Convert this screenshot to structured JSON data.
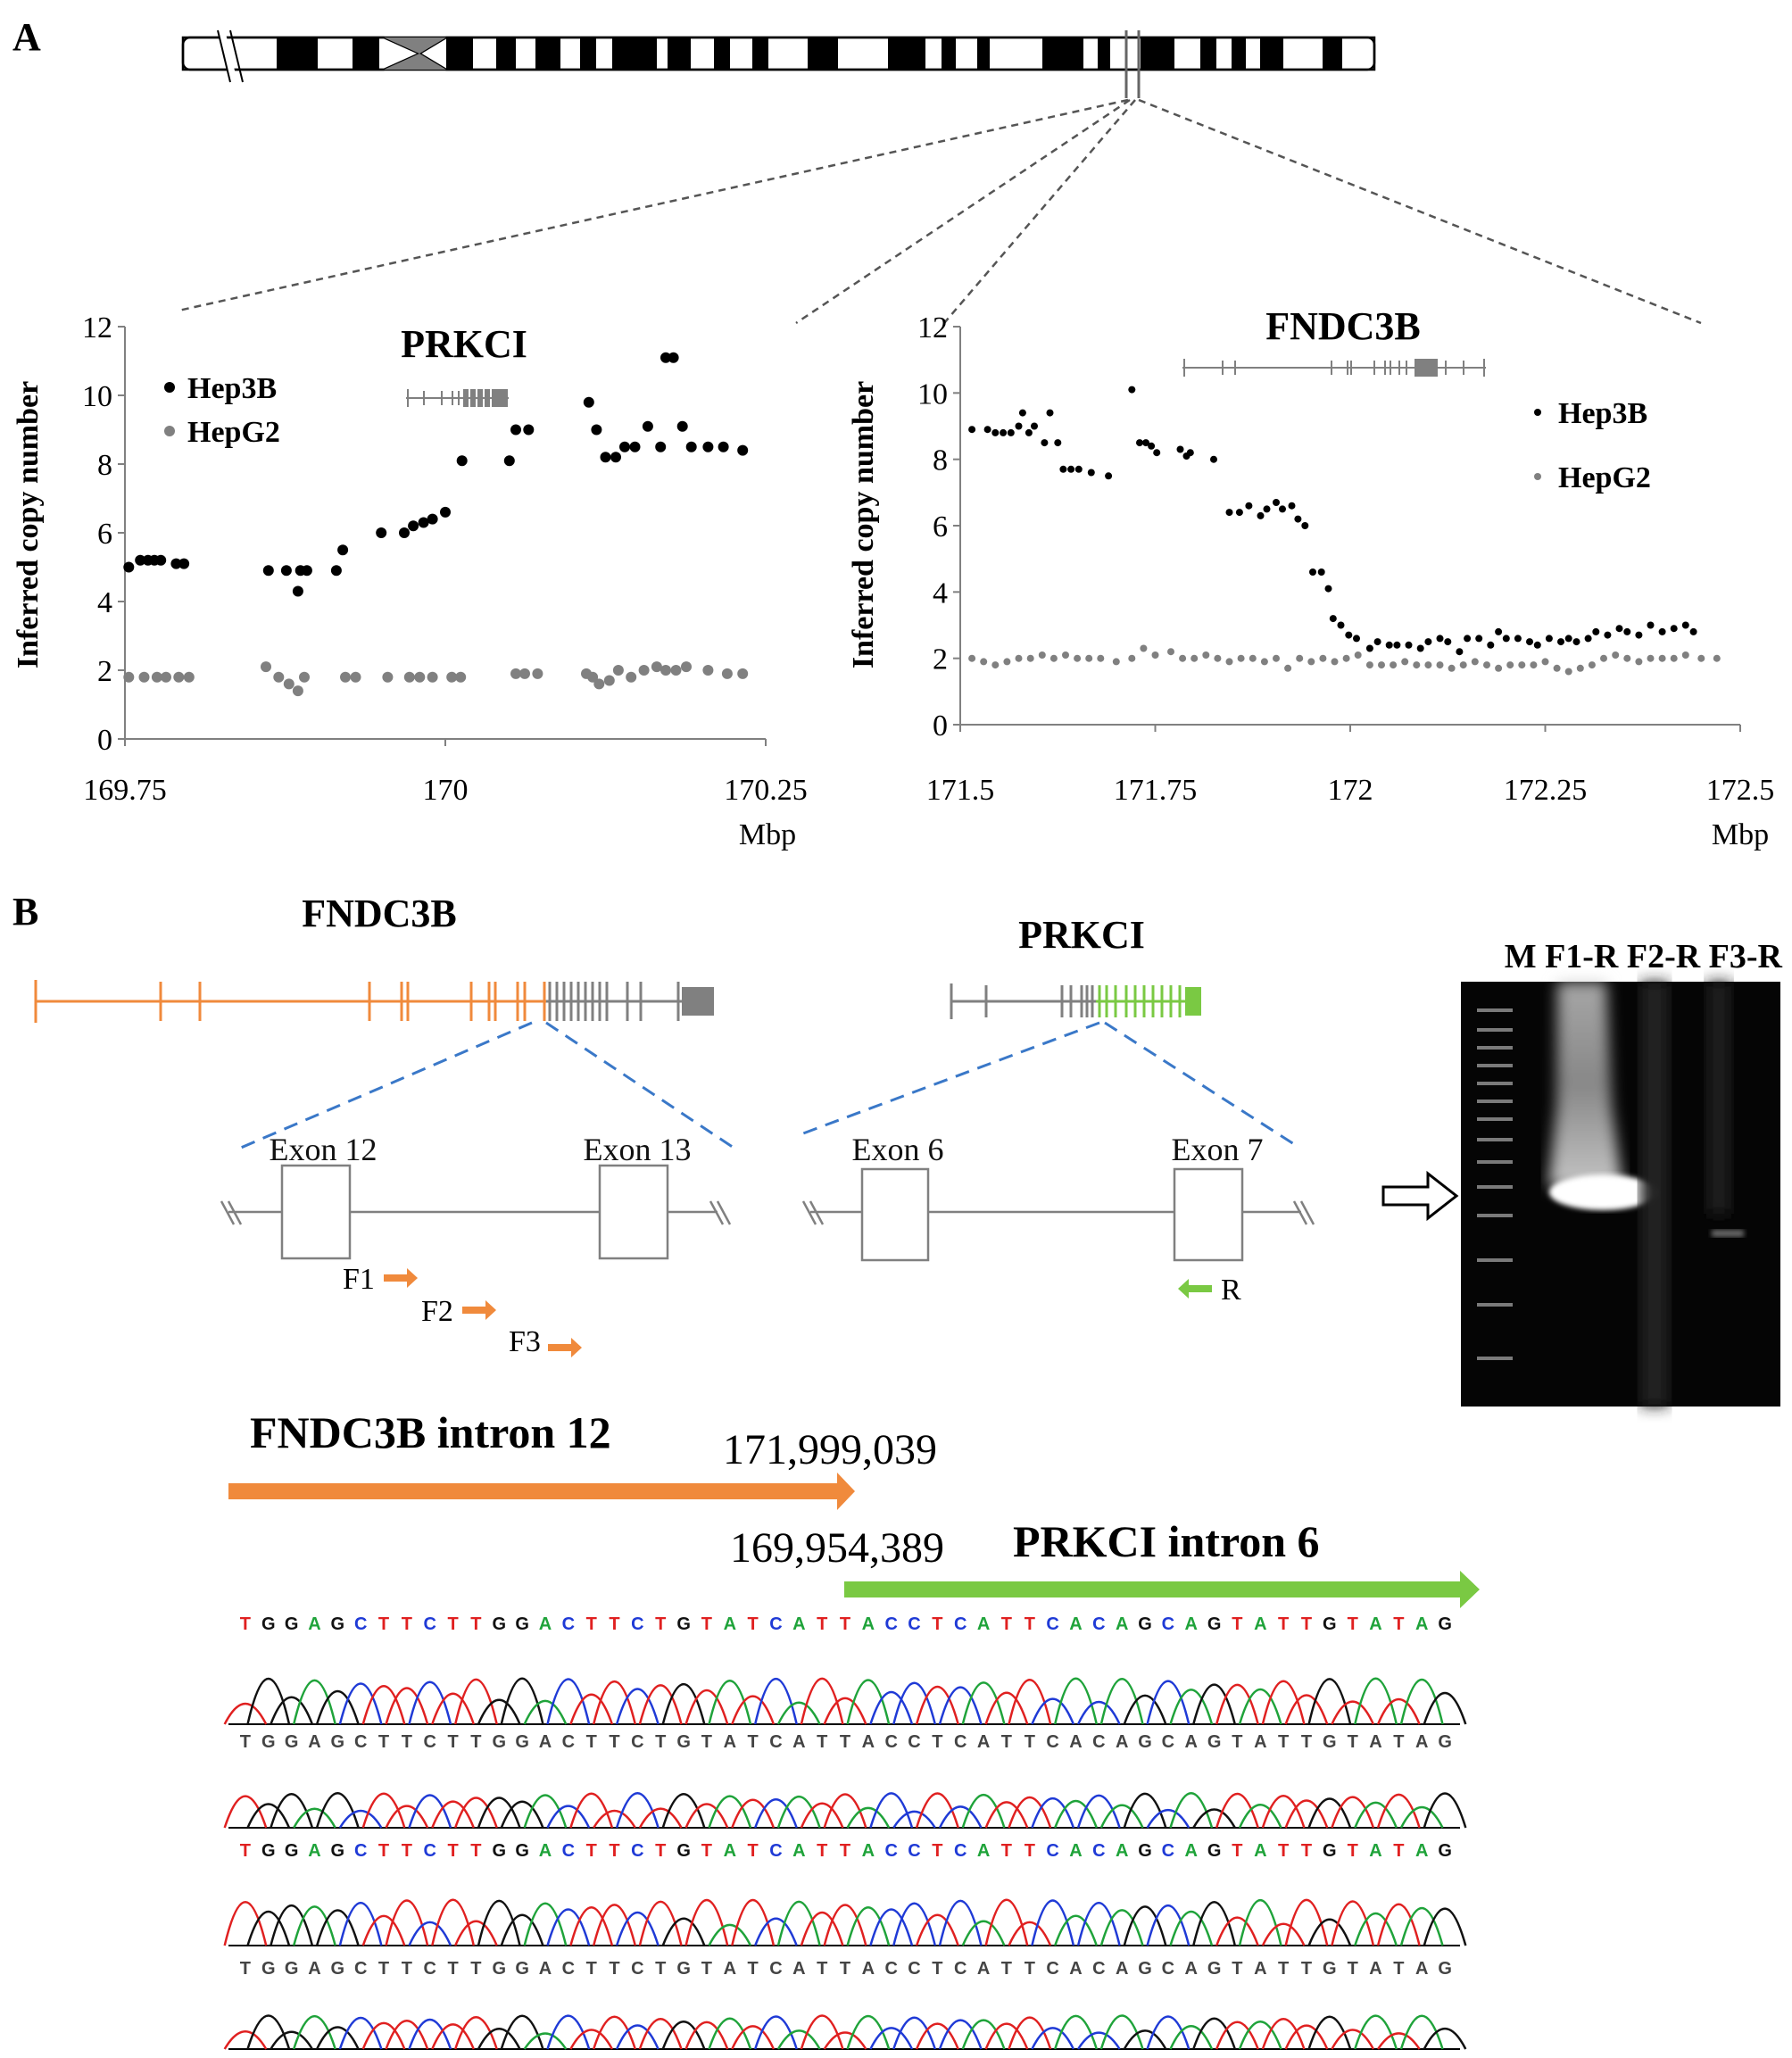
{
  "panel_labels": {
    "a": "A",
    "b": "B"
  },
  "chart_data": [
    {
      "type": "scatter",
      "title": "PRKCI",
      "xlabel": "Mbp",
      "ylabel": "Inferred copy number",
      "xlim": [
        169.75,
        170.25
      ],
      "ylim": [
        0,
        12
      ],
      "xticks": [
        "169.75",
        "170",
        "170.25"
      ],
      "yticks": [
        "0",
        "2",
        "4",
        "6",
        "8",
        "10",
        "12"
      ],
      "legend": "top-left",
      "series": [
        {
          "name": "Hep3B",
          "color": "#000000",
          "x": [
            169.753,
            169.762,
            169.768,
            169.773,
            169.778,
            169.79,
            169.796,
            169.862,
            169.876,
            169.885,
            169.887,
            169.892,
            169.915,
            169.92,
            169.95,
            169.968,
            169.975,
            169.983,
            169.99,
            170.0,
            170.013,
            170.05,
            170.055,
            170.065,
            170.112,
            170.118,
            170.125,
            170.133,
            170.14,
            170.148,
            170.158,
            170.168,
            170.172,
            170.178,
            170.185,
            170.192,
            170.205,
            170.217,
            170.232
          ],
          "y": [
            5.0,
            5.2,
            5.2,
            5.2,
            5.2,
            5.1,
            5.1,
            4.9,
            4.9,
            4.3,
            4.9,
            4.9,
            4.9,
            5.5,
            6.0,
            6.0,
            6.2,
            6.3,
            6.4,
            6.6,
            8.1,
            8.1,
            9.0,
            9.0,
            9.8,
            9.0,
            8.2,
            8.2,
            8.5,
            8.5,
            9.1,
            8.5,
            11.1,
            11.1,
            9.1,
            8.5,
            8.5,
            8.5,
            8.4
          ]
        },
        {
          "name": "HepG2",
          "color": "#808080",
          "x": [
            169.753,
            169.765,
            169.775,
            169.782,
            169.792,
            169.8,
            169.86,
            169.87,
            169.878,
            169.885,
            169.89,
            169.922,
            169.93,
            169.955,
            169.972,
            169.98,
            169.99,
            170.005,
            170.012,
            170.055,
            170.062,
            170.072,
            170.11,
            170.115,
            170.12,
            170.128,
            170.135,
            170.145,
            170.155,
            170.165,
            170.172,
            170.18,
            170.188,
            170.205,
            170.22,
            170.232
          ],
          "y": [
            1.8,
            1.8,
            1.8,
            1.8,
            1.8,
            1.8,
            2.1,
            1.8,
            1.6,
            1.4,
            1.8,
            1.8,
            1.8,
            1.8,
            1.8,
            1.8,
            1.8,
            1.8,
            1.8,
            1.9,
            1.9,
            1.9,
            1.9,
            1.8,
            1.6,
            1.7,
            2.0,
            1.8,
            2.0,
            2.1,
            2.0,
            2.0,
            2.1,
            2.0,
            1.9,
            1.9
          ]
        }
      ]
    },
    {
      "type": "scatter",
      "title": "FNDC3B",
      "xlabel": "Mbp",
      "ylabel": "Inferred copy number",
      "xlim": [
        171.5,
        172.5
      ],
      "ylim": [
        0,
        12
      ],
      "xticks": [
        "171.5",
        "171.75",
        "172",
        "172.25",
        "172.5"
      ],
      "yticks": [
        "0",
        "2",
        "4",
        "6",
        "8",
        "10",
        "12"
      ],
      "legend": "right",
      "series": [
        {
          "name": "Hep3B",
          "color": "#000000",
          "x": [
            171.515,
            171.535,
            171.545,
            171.555,
            171.565,
            171.575,
            171.58,
            171.588,
            171.595,
            171.608,
            171.615,
            171.625,
            171.632,
            171.642,
            171.652,
            171.668,
            171.69,
            171.72,
            171.73,
            171.738,
            171.745,
            171.752,
            171.782,
            171.79,
            171.795,
            171.825,
            171.845,
            171.858,
            171.87,
            171.885,
            171.893,
            171.905,
            171.913,
            171.925,
            171.933,
            171.942,
            171.952,
            171.963,
            171.972,
            171.978,
            171.988,
            171.998,
            172.008,
            172.025,
            172.035,
            172.05,
            172.06,
            172.075,
            172.09,
            172.1,
            172.115,
            172.125,
            172.14,
            172.15,
            172.165,
            172.18,
            172.19,
            172.2,
            172.215,
            172.23,
            172.24,
            172.255,
            172.27,
            172.28,
            172.29,
            172.305,
            172.315,
            172.33,
            172.345,
            172.355,
            172.37,
            172.385,
            172.4,
            172.415,
            172.43,
            172.44
          ],
          "y": [
            8.9,
            8.9,
            8.8,
            8.8,
            8.8,
            9.0,
            9.4,
            8.8,
            9.0,
            8.5,
            9.4,
            8.5,
            7.7,
            7.7,
            7.7,
            7.6,
            7.5,
            10.1,
            8.5,
            8.5,
            8.4,
            8.2,
            8.3,
            8.1,
            8.2,
            8.0,
            6.4,
            6.4,
            6.6,
            6.3,
            6.5,
            6.7,
            6.5,
            6.6,
            6.2,
            6.0,
            4.6,
            4.6,
            4.1,
            3.2,
            3.0,
            2.7,
            2.6,
            2.3,
            2.5,
            2.4,
            2.4,
            2.4,
            2.3,
            2.5,
            2.6,
            2.5,
            2.2,
            2.6,
            2.6,
            2.4,
            2.8,
            2.6,
            2.6,
            2.5,
            2.4,
            2.6,
            2.5,
            2.6,
            2.5,
            2.6,
            2.8,
            2.7,
            2.9,
            2.8,
            2.7,
            3.0,
            2.8,
            2.9,
            3.0,
            2.8
          ]
        },
        {
          "name": "HepG2",
          "color": "#808080",
          "x": [
            171.515,
            171.53,
            171.545,
            171.56,
            171.575,
            171.59,
            171.605,
            171.62,
            171.635,
            171.65,
            171.665,
            171.68,
            171.7,
            171.72,
            171.735,
            171.75,
            171.77,
            171.785,
            171.8,
            171.815,
            171.83,
            171.845,
            171.86,
            171.875,
            171.89,
            171.905,
            171.92,
            171.935,
            171.95,
            171.965,
            171.98,
            171.995,
            172.01,
            172.025,
            172.04,
            172.055,
            172.07,
            172.085,
            172.1,
            172.115,
            172.13,
            172.145,
            172.16,
            172.175,
            172.19,
            172.205,
            172.22,
            172.235,
            172.25,
            172.265,
            172.28,
            172.295,
            172.31,
            172.325,
            172.34,
            172.355,
            172.37,
            172.385,
            172.4,
            172.415,
            172.43,
            172.45,
            172.47
          ],
          "y": [
            2.0,
            1.9,
            1.8,
            1.9,
            2.0,
            2.0,
            2.1,
            2.0,
            2.1,
            2.0,
            2.0,
            2.0,
            1.9,
            2.0,
            2.3,
            2.1,
            2.2,
            2.0,
            2.0,
            2.1,
            2.0,
            1.9,
            2.0,
            2.0,
            1.9,
            2.0,
            1.7,
            2.0,
            1.9,
            2.0,
            1.9,
            2.0,
            2.1,
            1.8,
            1.8,
            1.8,
            1.9,
            1.8,
            1.8,
            1.8,
            1.7,
            1.8,
            1.9,
            1.8,
            1.7,
            1.8,
            1.8,
            1.8,
            1.9,
            1.7,
            1.6,
            1.7,
            1.8,
            2.0,
            2.1,
            2.0,
            1.9,
            2.0,
            2.0,
            2.0,
            2.1,
            2.0,
            2.0
          ]
        }
      ]
    }
  ],
  "gene_diagram": {
    "fndc3b_label": "FNDC3B",
    "prkci_label": "PRKCI",
    "fndc3b_color": "#f08a3c",
    "prkci_color": "#7ac943",
    "exons": {
      "e12": "Exon 12",
      "e13": "Exon 13",
      "e6": "Exon 6",
      "e7": "Exon 7"
    },
    "primers": {
      "f1": "F1",
      "f2": "F2",
      "f3": "F3",
      "r": "R"
    }
  },
  "gel": {
    "lanes": "M F1-R F2-R F3-R"
  },
  "junction": {
    "fndc3b_label": "FNDC3B intron 12",
    "fndc3b_coord": "171,999,039",
    "prkci_coord": "169,954,389",
    "prkci_label": "PRKCI intron 6"
  },
  "chromatograms": [
    {
      "sequence": "TGGAGCTTCTTGGACTTCTGTATCATTACCTCATTCACAGCAGTATTGTATAG"
    },
    {
      "sequence": "TGGAGCTTCTTGGACTTCTGTATCATTACCTCATTCACAGCAGTATTGTATAG"
    },
    {
      "sequence": "TGGAGCTTCTTGGACTTCTGTATCATTACCTCATTCACAGCAGTATTGTATAG"
    },
    {
      "sequence": "TGGAGCTTCTTGGACTTCTGTATCATTACCTCATTCACAGCAGTATTGTATAG"
    }
  ]
}
